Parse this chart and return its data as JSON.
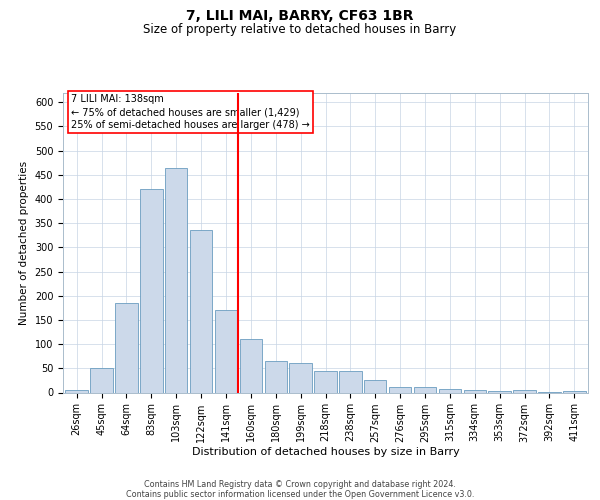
{
  "title": "7, LILI MAI, BARRY, CF63 1BR",
  "subtitle": "Size of property relative to detached houses in Barry",
  "xlabel": "Distribution of detached houses by size in Barry",
  "ylabel": "Number of detached properties",
  "footer_line1": "Contains HM Land Registry data © Crown copyright and database right 2024.",
  "footer_line2": "Contains public sector information licensed under the Open Government Licence v3.0.",
  "annotation_line1": "7 LILI MAI: 138sqm",
  "annotation_line2": "← 75% of detached houses are smaller (1,429)",
  "annotation_line3": "25% of semi-detached houses are larger (478) →",
  "bar_color": "#ccd9ea",
  "bar_edge_color": "#6b9dc0",
  "vline_color": "red",
  "vline_position": 6.5,
  "categories": [
    "26sqm",
    "45sqm",
    "64sqm",
    "83sqm",
    "103sqm",
    "122sqm",
    "141sqm",
    "160sqm",
    "180sqm",
    "199sqm",
    "218sqm",
    "238sqm",
    "257sqm",
    "276sqm",
    "295sqm",
    "315sqm",
    "334sqm",
    "353sqm",
    "372sqm",
    "392sqm",
    "411sqm"
  ],
  "values": [
    5,
    50,
    185,
    420,
    465,
    335,
    170,
    110,
    65,
    62,
    45,
    45,
    25,
    12,
    12,
    8,
    5,
    3,
    5,
    2,
    3
  ],
  "ylim": [
    0,
    620
  ],
  "yticks": [
    0,
    50,
    100,
    150,
    200,
    250,
    300,
    350,
    400,
    450,
    500,
    550,
    600
  ],
  "title_fontsize": 10,
  "subtitle_fontsize": 8.5,
  "xlabel_fontsize": 8,
  "ylabel_fontsize": 7.5,
  "tick_fontsize": 7,
  "annotation_fontsize": 7,
  "footer_fontsize": 5.8
}
